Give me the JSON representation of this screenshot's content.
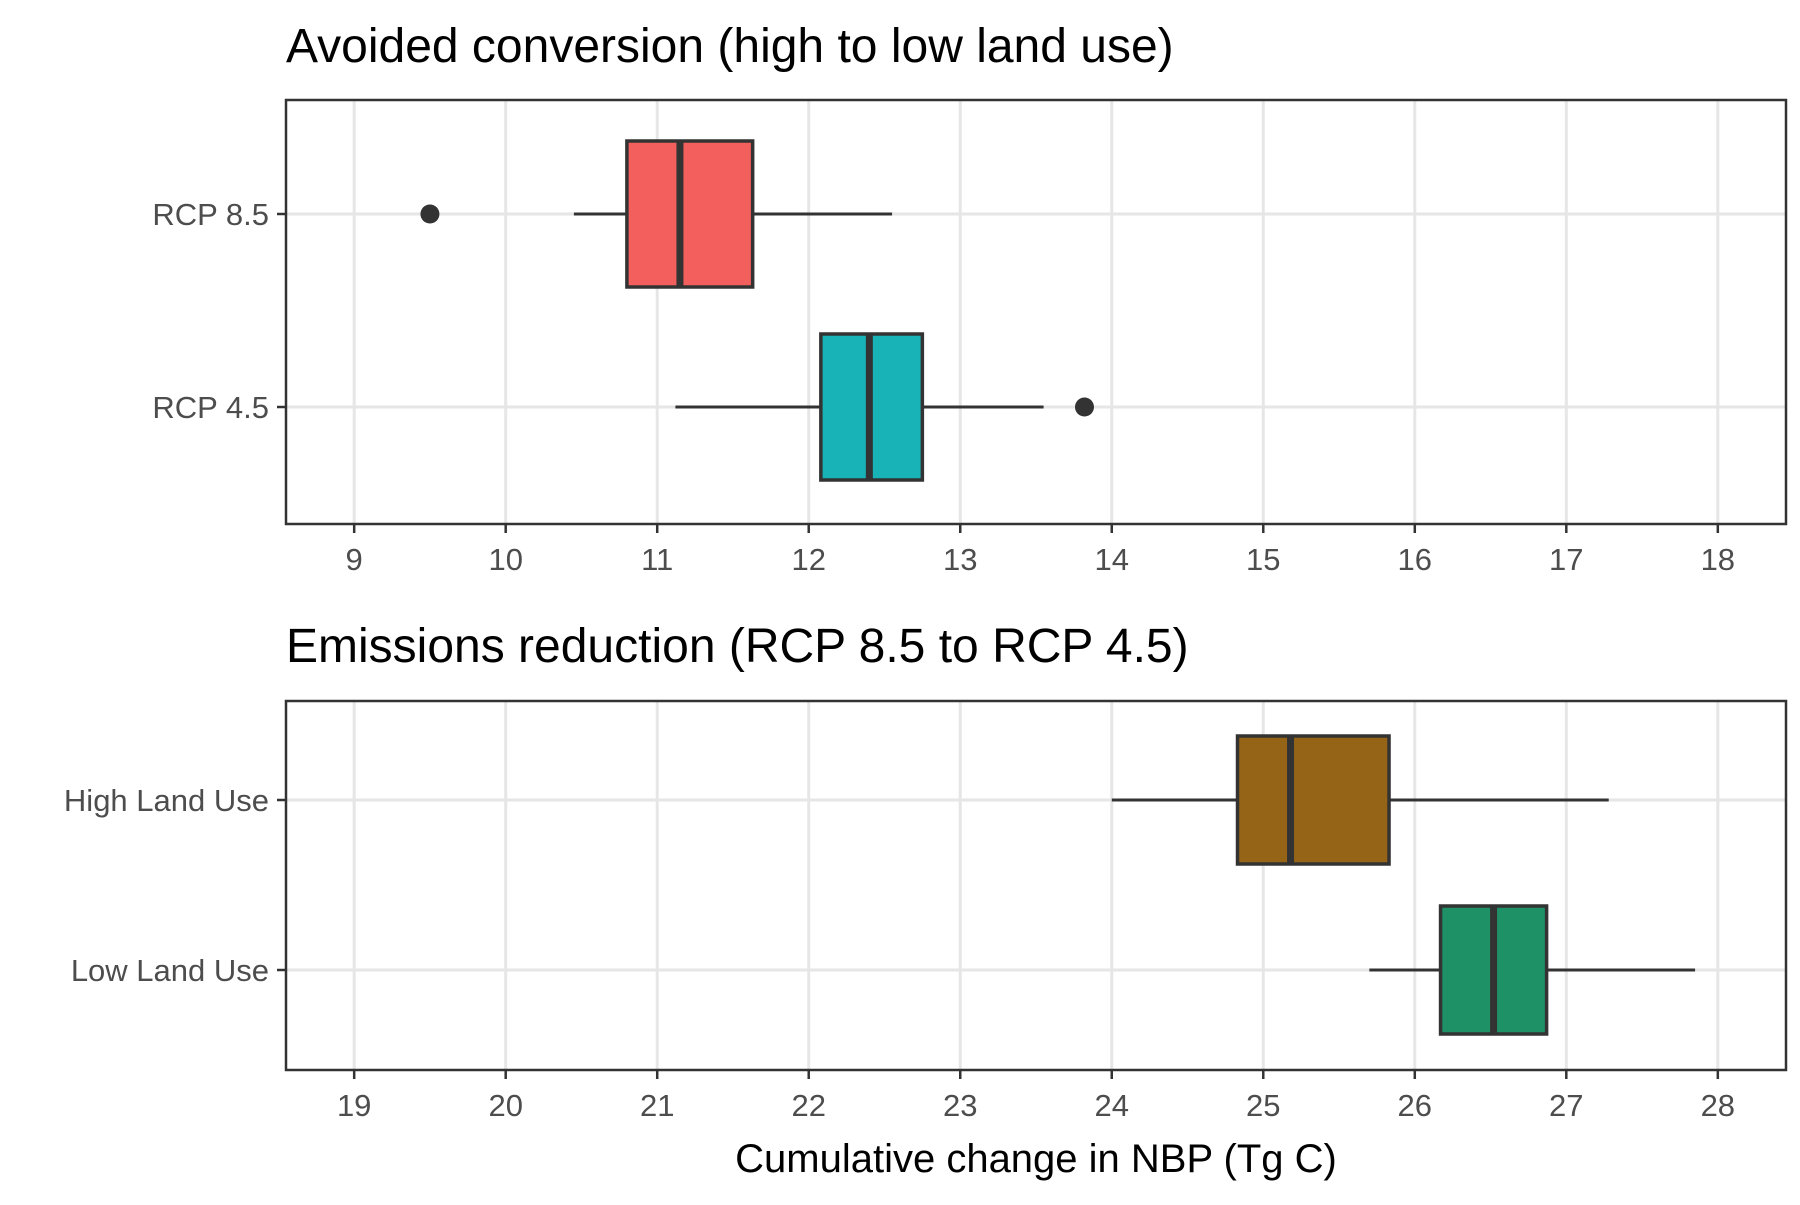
{
  "chart_data": [
    {
      "type": "boxplot",
      "title": "Avoided conversion (high to low land use)",
      "xlabel": "",
      "xlim": [
        8.55,
        18.45
      ],
      "xticks": [
        9,
        10,
        11,
        12,
        13,
        14,
        15,
        16,
        17,
        18
      ],
      "grid": true,
      "categories": [
        "RCP 8.5",
        "RCP 4.5"
      ],
      "boxes": [
        {
          "label": "RCP 8.5",
          "whisker_low": 10.45,
          "q1": 10.8,
          "median": 11.15,
          "q3": 11.63,
          "whisker_high": 12.55,
          "outliers": [
            9.5
          ],
          "color": "#F25F5C"
        },
        {
          "label": "RCP 4.5",
          "whisker_low": 11.12,
          "q1": 12.08,
          "median": 12.4,
          "q3": 12.75,
          "whisker_high": 13.55,
          "outliers": [
            13.82
          ],
          "color": "#17B3B7"
        }
      ]
    },
    {
      "type": "boxplot",
      "title": "Emissions reduction (RCP 8.5 to RCP 4.5)",
      "xlabel": "Cumulative change in NBP (Tg C)",
      "xlim": [
        18.55,
        28.45
      ],
      "xticks": [
        19,
        20,
        21,
        22,
        23,
        24,
        25,
        26,
        27,
        28
      ],
      "grid": true,
      "categories": [
        "High Land Use",
        "Low Land Use"
      ],
      "boxes": [
        {
          "label": "High Land Use",
          "whisker_low": 24.0,
          "q1": 24.83,
          "median": 25.18,
          "q3": 25.83,
          "whisker_high": 27.28,
          "outliers": [],
          "color": "#956417"
        },
        {
          "label": "Low Land Use",
          "whisker_low": 25.7,
          "q1": 26.17,
          "median": 26.52,
          "q3": 26.87,
          "whisker_high": 27.85,
          "outliers": [],
          "color": "#1E9167"
        }
      ]
    }
  ]
}
